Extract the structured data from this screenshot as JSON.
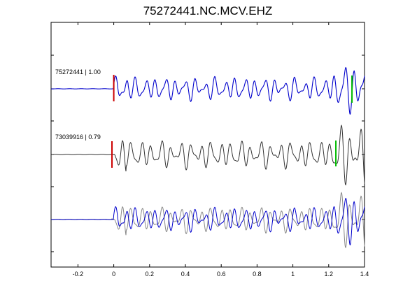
{
  "title": "75272441.NC.MCV.EHZ",
  "colors": {
    "primary_trace": "#0000cc",
    "secondary_trace": "#333333",
    "overlay_trace": "#888888",
    "p_pick": "#cc0000",
    "s_pick": "#00bb00",
    "axes": "#000000"
  },
  "chart_data": {
    "type": "line",
    "title": "75272441.NC.MCV.EHZ",
    "xlabel": "",
    "ylabel": "",
    "xlim": [
      -0.35,
      1.4
    ],
    "xticks": [
      -0.2,
      0,
      0.2,
      0.4,
      0.6,
      0.8,
      1,
      1.2,
      1.4
    ],
    "xtick_labels": [
      "-0.2",
      "0",
      "0.2",
      "0.4",
      "0.6",
      "0.8",
      "1",
      "1.2",
      "1.4"
    ],
    "grid": false,
    "legend": "none",
    "traces": [
      {
        "label": "75272441 | 1.00",
        "color": "#0000cc",
        "p_pick_time": 0.0,
        "s_pick_time": 1.33
      },
      {
        "label": "73039916 | 0.79",
        "color": "#333333",
        "p_pick_time": -0.01,
        "s_pick_time": 1.24
      }
    ],
    "overlay": "both waveforms superimposed (third row)"
  }
}
